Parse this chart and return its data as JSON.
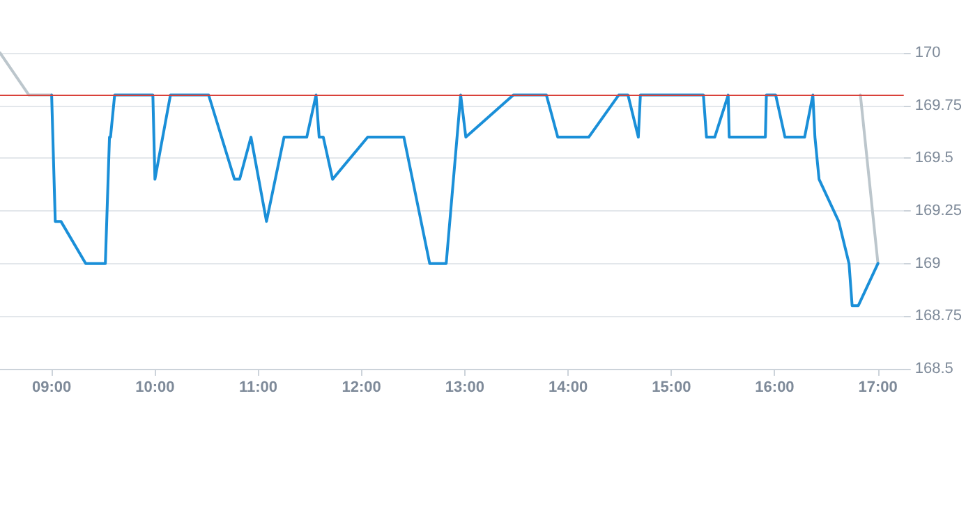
{
  "chart_data": {
    "type": "line",
    "xlim": [
      8.5,
      17.25
    ],
    "ylim": [
      168.5,
      170
    ],
    "xticks": [
      {
        "value": 9,
        "label": "09:00"
      },
      {
        "value": 10,
        "label": "10:00"
      },
      {
        "value": 11,
        "label": "11:00"
      },
      {
        "value": 12,
        "label": "12:00"
      },
      {
        "value": 13,
        "label": "13:00"
      },
      {
        "value": 14,
        "label": "14:00"
      },
      {
        "value": 15,
        "label": "15:00"
      },
      {
        "value": 16,
        "label": "16:00"
      },
      {
        "value": 17,
        "label": "17:00"
      }
    ],
    "yticks": [
      168.5,
      168.75,
      169,
      169.25,
      169.5,
      169.75,
      170
    ],
    "grid": "y",
    "legend": false,
    "marker": "none",
    "line_style": "solid",
    "ref_lines": [
      {
        "axis": "y",
        "value": 169.8,
        "color": "#d9413a"
      }
    ],
    "series": [
      {
        "color": "#bcc6cc",
        "x": [
          8.5,
          8.78,
          9.0
        ],
        "values": [
          170,
          169.8,
          169.8
        ]
      },
      {
        "color": "#bcc6cc",
        "x": [
          16.83,
          17.0
        ],
        "values": [
          169.8,
          169.0
        ]
      },
      {
        "color": "#1a8fd8",
        "x": [
          9.0,
          9.035,
          9.09,
          9.33,
          9.52,
          9.56,
          9.57,
          9.61,
          9.98,
          10.0,
          10.15,
          10.52,
          10.77,
          10.82,
          10.93,
          11.08,
          11.25,
          11.47,
          11.56,
          11.59,
          11.63,
          11.72,
          12.06,
          12.41,
          12.66,
          12.82,
          12.96,
          13.01,
          13.47,
          13.79,
          13.9,
          14.2,
          14.49,
          14.58,
          14.68,
          14.7,
          15.31,
          15.34,
          15.42,
          15.55,
          15.56,
          15.91,
          15.92,
          16.01,
          16.1,
          16.29,
          16.37,
          16.39,
          16.43,
          16.62,
          16.72,
          16.75,
          16.81,
          17.0
        ],
        "values": [
          169.8,
          169.2,
          169.2,
          169.0,
          169.0,
          169.6,
          169.6,
          169.8,
          169.8,
          169.4,
          169.8,
          169.8,
          169.4,
          169.4,
          169.6,
          169.2,
          169.6,
          169.6,
          169.8,
          169.6,
          169.6,
          169.4,
          169.6,
          169.6,
          169.0,
          169.0,
          169.8,
          169.6,
          169.8,
          169.8,
          169.6,
          169.6,
          169.8,
          169.8,
          169.6,
          169.8,
          169.8,
          169.6,
          169.6,
          169.8,
          169.6,
          169.6,
          169.8,
          169.8,
          169.6,
          169.6,
          169.8,
          169.6,
          169.4,
          169.2,
          169.0,
          168.8,
          168.8,
          169.0
        ]
      }
    ]
  }
}
